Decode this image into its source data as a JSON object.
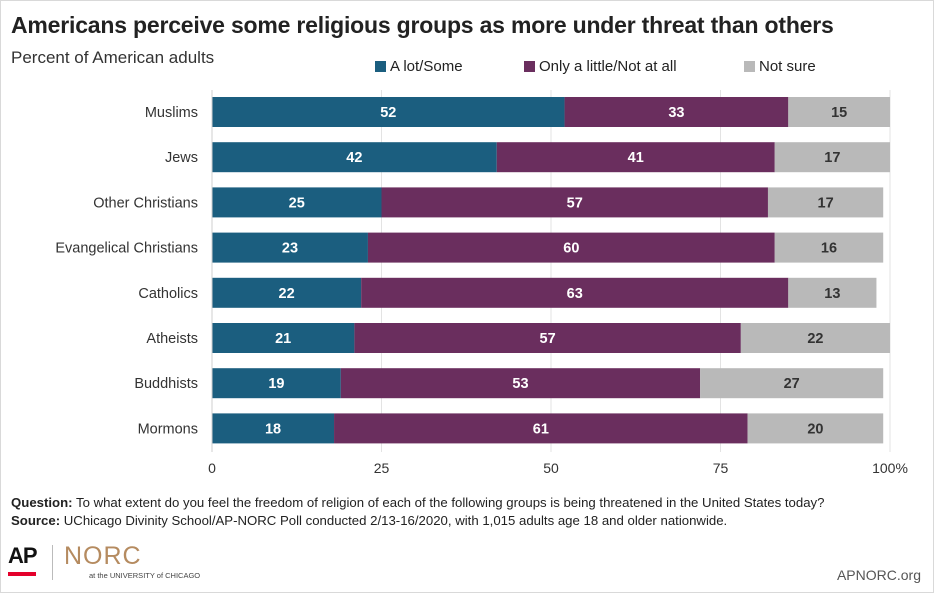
{
  "title": "Americans perceive some religious groups as more under threat than others",
  "subtitle": "Percent of American adults",
  "notes": {
    "question_label": "Question:",
    "question_text": " To what extent do you feel the freedom of religion of each of the following groups is being threatened in the United States today?",
    "source_label": "Source:",
    "source_text": " UChicago Divinity School/AP-NORC Poll conducted 2/13-16/2020, with 1,015 adults age 18 and older nationwide."
  },
  "branding": {
    "ap": "AP",
    "norc": "NORC",
    "norc_sub": "at the UNIVERSITY of CHICAGO",
    "site": "APNORC.org"
  },
  "colors": {
    "a_lot_some": "#1b5e7f",
    "only_little_not_at_all": "#6a2e5e",
    "not_sure": "#b9b9b9"
  },
  "chart_data": {
    "type": "bar",
    "orientation": "horizontal",
    "stacked": true,
    "categories": [
      "Muslims",
      "Jews",
      "Other Christians",
      "Evangelical Christians",
      "Catholics",
      "Atheists",
      "Buddhists",
      "Mormons"
    ],
    "series": [
      {
        "name": "A lot/Some",
        "values": [
          52,
          42,
          25,
          23,
          22,
          21,
          19,
          18
        ]
      },
      {
        "name": "Only a little/Not at all",
        "values": [
          33,
          41,
          57,
          60,
          63,
          57,
          53,
          61
        ]
      },
      {
        "name": "Not sure",
        "values": [
          15,
          17,
          17,
          16,
          13,
          22,
          27,
          20
        ]
      }
    ],
    "xlim": [
      0,
      100
    ],
    "xticks": [
      0,
      25,
      50,
      75,
      100
    ],
    "xtick_labels": [
      "0",
      "25",
      "50",
      "75",
      "100%"
    ],
    "grid": true,
    "legend": "top"
  }
}
